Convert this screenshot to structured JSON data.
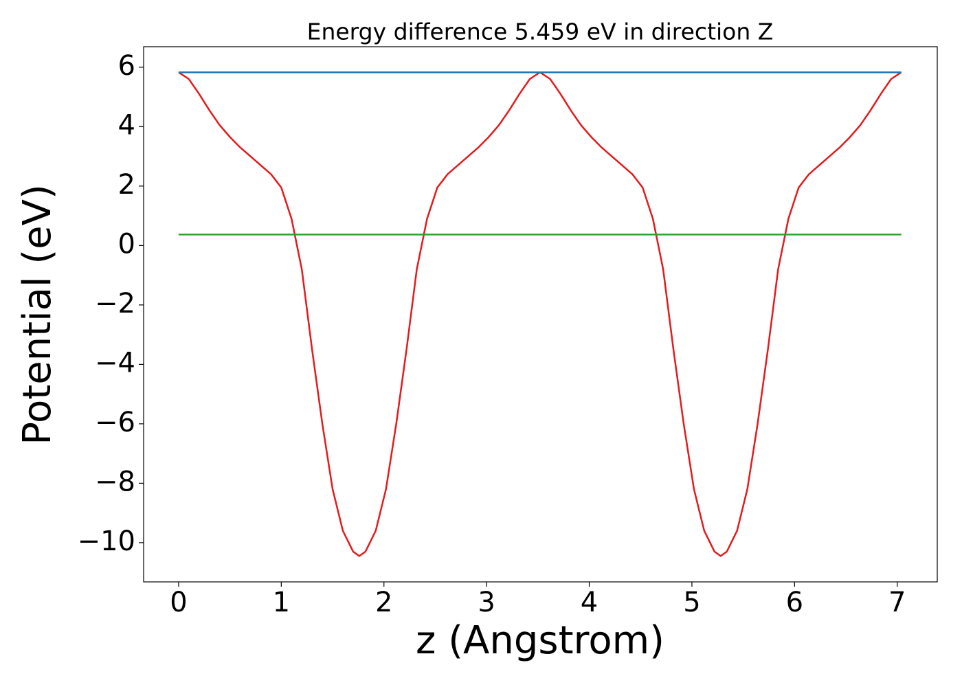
{
  "chart_data": {
    "type": "line",
    "title": "Energy difference 5.459 eV in direction Z",
    "x_label": "z (Angstrom)",
    "y_label": "Potential (eV)",
    "xlim": [
      -0.341,
      7.39
    ],
    "ylim": [
      -11.32,
      6.69
    ],
    "xticks": [
      0,
      1,
      2,
      3,
      4,
      5,
      6,
      7
    ],
    "yticks": [
      {
        "value": -10,
        "label": "−10"
      },
      {
        "value": -8,
        "label": "−8"
      },
      {
        "value": -6,
        "label": "−6"
      },
      {
        "value": -4,
        "label": "−4"
      },
      {
        "value": -2,
        "label": "−2"
      },
      0,
      2,
      4,
      6
    ],
    "series": [
      {
        "color": "#e41a1c",
        "x": [
          0,
          0.1,
          0.2,
          0.3,
          0.4,
          0.5,
          0.6,
          0.7,
          0.8,
          0.9,
          1.0,
          1.1,
          1.2,
          1.3,
          1.4,
          1.5,
          1.6,
          1.7,
          1.76,
          1.82,
          1.92,
          2.02,
          2.12,
          2.22,
          2.32,
          2.42,
          2.52,
          2.62,
          2.72,
          2.82,
          2.92,
          3.02,
          3.12,
          3.22,
          3.32,
          3.42,
          3.52,
          3.62,
          3.72,
          3.82,
          3.92,
          4.02,
          4.12,
          4.22,
          4.32,
          4.42,
          4.52,
          4.62,
          4.72,
          4.82,
          4.92,
          5.02,
          5.12,
          5.22,
          5.28,
          5.34,
          5.44,
          5.54,
          5.64,
          5.74,
          5.84,
          5.94,
          6.04,
          6.14,
          6.24,
          6.34,
          6.44,
          6.54,
          6.64,
          6.74,
          6.84,
          6.94,
          7.04
        ],
        "values": [
          5.83,
          5.6,
          5.1,
          4.55,
          4.05,
          3.65,
          3.3,
          3.0,
          2.7,
          2.4,
          1.95,
          0.9,
          -0.8,
          -3.5,
          -6.0,
          -8.2,
          -9.6,
          -10.3,
          -10.45,
          -10.3,
          -9.6,
          -8.2,
          -6.0,
          -3.5,
          -0.8,
          0.9,
          1.95,
          2.4,
          2.7,
          3.0,
          3.3,
          3.65,
          4.05,
          4.55,
          5.1,
          5.6,
          5.83,
          5.6,
          5.1,
          4.55,
          4.05,
          3.65,
          3.3,
          3.0,
          2.7,
          2.4,
          1.95,
          0.9,
          -0.8,
          -3.5,
          -6.0,
          -8.2,
          -9.6,
          -10.3,
          -10.45,
          -10.3,
          -9.6,
          -8.2,
          -6.0,
          -3.5,
          -0.8,
          0.9,
          1.95,
          2.4,
          2.7,
          3.0,
          3.3,
          3.65,
          4.05,
          4.55,
          5.1,
          5.6,
          5.83
        ]
      },
      {
        "color": "#1f77b4",
        "x": [
          0,
          7.04
        ],
        "values": [
          5.83,
          5.83
        ]
      },
      {
        "color": "#2ca02c",
        "x": [
          0,
          7.04
        ],
        "values": [
          0.37,
          0.37
        ]
      }
    ]
  }
}
